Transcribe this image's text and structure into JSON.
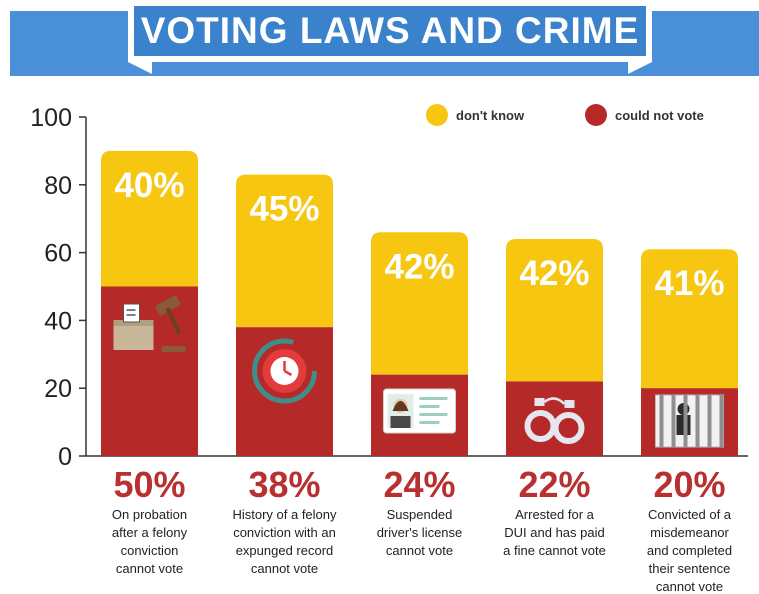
{
  "header": {
    "title": "VOTING LAWS AND CRIME"
  },
  "colors": {
    "dont_know": "#f6c611",
    "could_not_vote": "#b52a28",
    "banner": "#4a90d9",
    "banner_inner": "#3a82cc"
  },
  "icons": [
    "ballot-gavel-icon",
    "stopwatch-icon",
    "id-card-icon",
    "handcuffs-icon",
    "jail-cell-icon"
  ],
  "chart_data": {
    "type": "bar",
    "stacked": true,
    "categories": [
      "On probation after a felony conviction cannot vote",
      "History of a felony conviction with an expunged record cannot vote",
      "Suspended driver's license cannot vote",
      "Arrested for a DUI and has paid a fine cannot vote",
      "Convicted of a misdemeanor and completed their sentence cannot vote"
    ],
    "category_lines": [
      [
        "On probation",
        "after a felony",
        "conviction",
        "cannot vote"
      ],
      [
        "History of a felony",
        "conviction with an",
        "expunged record",
        "cannot vote"
      ],
      [
        "Suspended",
        "driver's license",
        "cannot vote"
      ],
      [
        "Arrested for a",
        "DUI and has paid",
        "a fine cannot vote"
      ],
      [
        "Convicted of a",
        "misdemeanor",
        "and completed",
        "their sentence",
        "cannot vote"
      ]
    ],
    "series": [
      {
        "name": "could not vote",
        "values": [
          50,
          38,
          24,
          22,
          20
        ],
        "labels": [
          "50%",
          "38%",
          "24%",
          "22%",
          "20%"
        ]
      },
      {
        "name": "don't know",
        "values": [
          40,
          45,
          42,
          42,
          41
        ],
        "labels": [
          "40%",
          "45%",
          "42%",
          "42%",
          "41%"
        ]
      }
    ],
    "yticks": [
      "0",
      "20",
      "40",
      "60",
      "80",
      "100"
    ],
    "ylim": [
      0,
      100
    ],
    "legend": {
      "position": "top-right",
      "entries": [
        "don't know",
        "could not vote"
      ]
    }
  }
}
